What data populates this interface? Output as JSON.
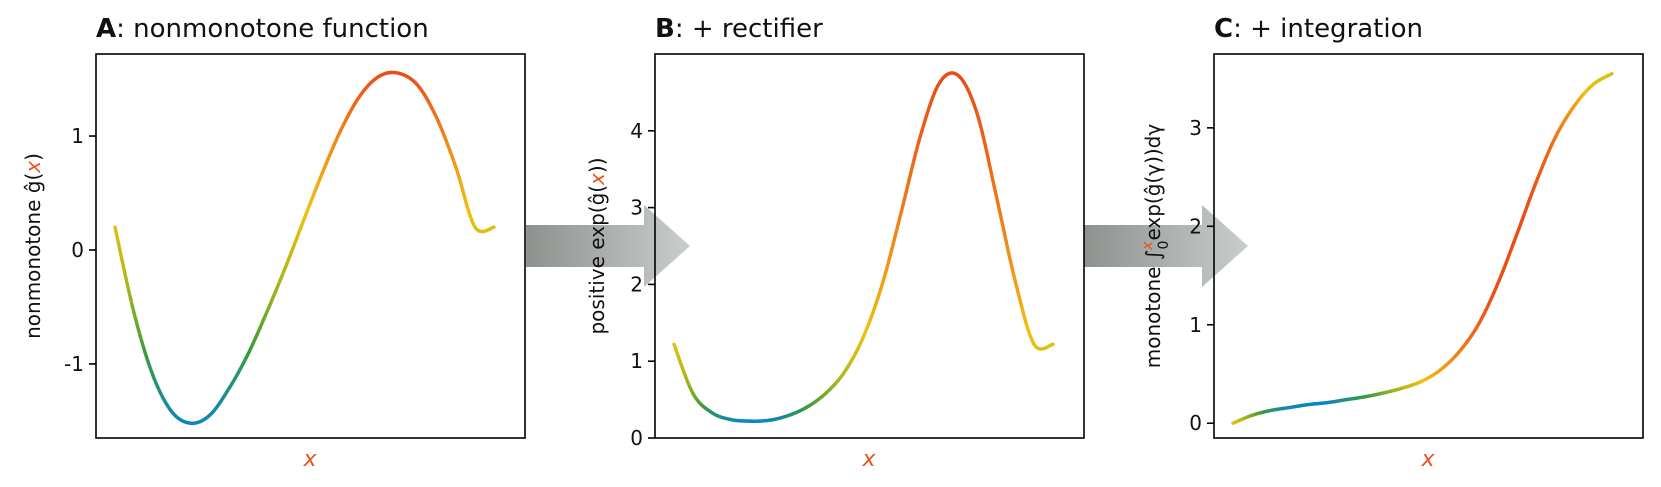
{
  "chart_data": [
    {
      "type": "line",
      "panel": "A",
      "title_bold": "A",
      "title_rest": ": nonmonotone function",
      "ylabel": "nonmonotone ĝ(x)",
      "xlabel": "x",
      "yticks": [
        "-1",
        "0",
        "1"
      ],
      "ytick_values": [
        -1,
        0,
        1
      ],
      "ylim": [
        -1.65,
        1.72
      ],
      "x": [
        0.0,
        0.05,
        0.1,
        0.15,
        0.2,
        0.25,
        0.3,
        0.35,
        0.4,
        0.45,
        0.5,
        0.55,
        0.6,
        0.65,
        0.7,
        0.75,
        0.8,
        0.85,
        0.9,
        0.95,
        1.0
      ],
      "y": [
        0.2,
        -0.55,
        -1.1,
        -1.42,
        -1.52,
        -1.45,
        -1.22,
        -0.92,
        -0.55,
        -0.15,
        0.28,
        0.7,
        1.08,
        1.37,
        1.53,
        1.55,
        1.44,
        1.15,
        0.72,
        0.2,
        0.2
      ]
    },
    {
      "type": "line",
      "panel": "B",
      "title_bold": "B",
      "title_rest": ": + rectifier",
      "ylabel": "positive exp(ĝ(x))",
      "xlabel": "x",
      "yticks": [
        "0",
        "1",
        "2",
        "3",
        "4"
      ],
      "ytick_values": [
        0,
        1,
        2,
        3,
        4
      ],
      "ylim": [
        0,
        5.0
      ],
      "x": [
        0.0,
        0.05,
        0.1,
        0.15,
        0.2,
        0.25,
        0.3,
        0.35,
        0.4,
        0.45,
        0.5,
        0.55,
        0.6,
        0.65,
        0.7,
        0.75,
        0.8,
        0.85,
        0.9,
        0.95,
        1.0
      ],
      "y": [
        1.22,
        0.58,
        0.33,
        0.24,
        0.22,
        0.23,
        0.29,
        0.4,
        0.58,
        0.86,
        1.32,
        2.01,
        2.95,
        3.93,
        4.62,
        4.72,
        4.22,
        3.16,
        2.05,
        1.22,
        1.22
      ]
    },
    {
      "type": "line",
      "panel": "C",
      "title_bold": "C",
      "title_rest": ": + integration",
      "ylabel_prefix": "monotone ∫",
      "ylabel_upper": "x",
      "ylabel_lower": "0",
      "ylabel_suffix": "exp(ĝ(γ))dγ",
      "xlabel": "x",
      "yticks": [
        "0",
        "1",
        "2",
        "3"
      ],
      "ytick_values": [
        0,
        1,
        2,
        3
      ],
      "ylim": [
        -0.15,
        3.75
      ],
      "x": [
        0.0,
        0.05,
        0.1,
        0.15,
        0.2,
        0.25,
        0.3,
        0.35,
        0.4,
        0.45,
        0.5,
        0.55,
        0.6,
        0.65,
        0.7,
        0.75,
        0.8,
        0.85,
        0.9,
        0.95,
        1.0
      ],
      "y": [
        0.0,
        0.08,
        0.13,
        0.16,
        0.19,
        0.21,
        0.24,
        0.27,
        0.31,
        0.36,
        0.43,
        0.55,
        0.74,
        1.02,
        1.43,
        1.93,
        2.45,
        2.9,
        3.22,
        3.44,
        3.55
      ]
    }
  ],
  "colormap": [
    "#0a85c4",
    "#3a9a3e",
    "#a7b81a",
    "#f0c110",
    "#f08a1a",
    "#e84e18"
  ]
}
